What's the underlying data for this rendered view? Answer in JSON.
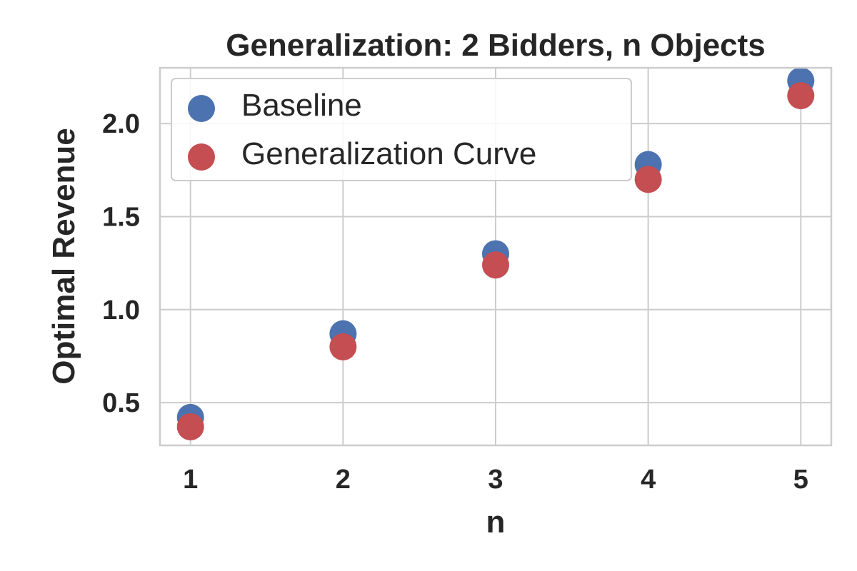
{
  "chart_data": {
    "type": "scatter",
    "title": "Generalization: 2 Bidders, n Objects",
    "xlabel": "n",
    "ylabel": "Optimal Revenue",
    "xlim": [
      0.8,
      5.2
    ],
    "ylim": [
      0.27,
      2.3
    ],
    "x_ticks": [
      1,
      2,
      3,
      4,
      5
    ],
    "y_ticks": [
      0.5,
      1.0,
      1.5,
      2.0
    ],
    "x_tick_labels": [
      "1",
      "2",
      "3",
      "4",
      "5"
    ],
    "y_tick_labels": [
      "0.5",
      "1.0",
      "1.5",
      "2.0"
    ],
    "grid": true,
    "legend_position": "top-left",
    "series": [
      {
        "name": "Baseline",
        "color": "#4c72b0",
        "x": [
          1,
          2,
          3,
          4,
          5
        ],
        "y": [
          0.42,
          0.87,
          1.3,
          1.78,
          2.23
        ]
      },
      {
        "name": "Generalization Curve",
        "color": "#c44e52",
        "x": [
          1,
          2,
          3,
          4,
          5
        ],
        "y": [
          0.37,
          0.8,
          1.24,
          1.7,
          2.15
        ]
      }
    ]
  }
}
